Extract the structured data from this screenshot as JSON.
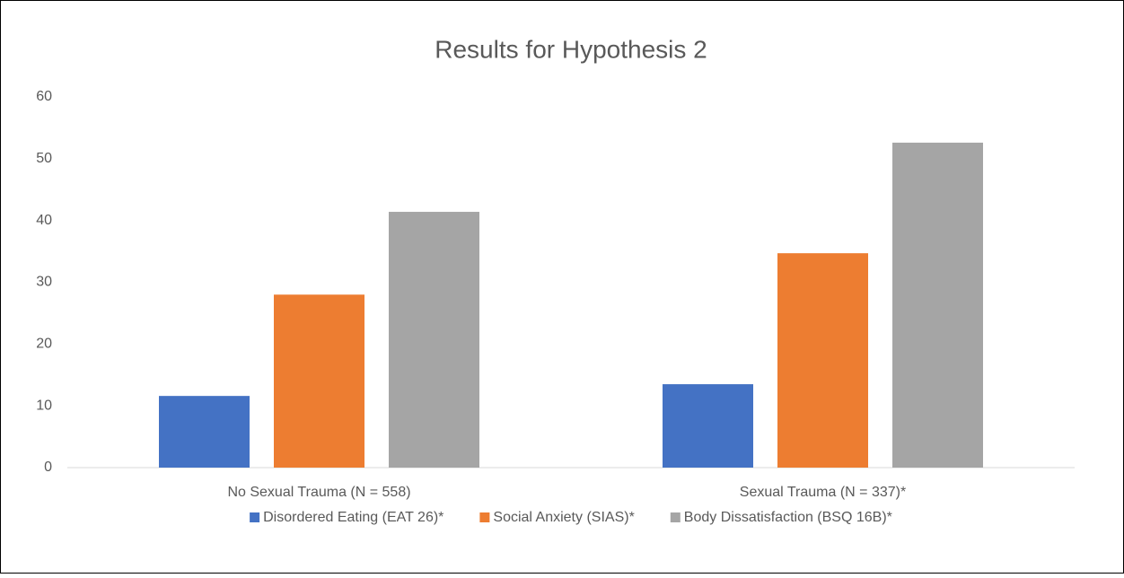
{
  "chart_data": {
    "type": "bar",
    "title": "Results for Hypothesis 2",
    "categories": [
      "No Sexual Trauma (N = 558)",
      "Sexual Trauma (N = 337)*"
    ],
    "series": [
      {
        "name": "Disordered Eating (EAT 26)*",
        "color": "#4472c4",
        "values": [
          11.6,
          13.5
        ]
      },
      {
        "name": "Social Anxiety (SIAS)*",
        "color": "#ed7d31",
        "values": [
          28.0,
          34.7
        ]
      },
      {
        "name": "Body Dissatisfaction (BSQ 16B)*",
        "color": "#a5a5a5",
        "values": [
          41.4,
          52.6
        ]
      }
    ],
    "ylim": [
      0,
      60
    ],
    "yticks": [
      0,
      10,
      20,
      30,
      40,
      50,
      60
    ],
    "grid": false,
    "legend": "bottom"
  }
}
